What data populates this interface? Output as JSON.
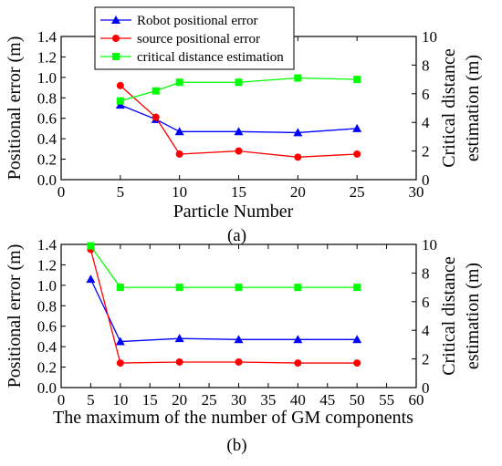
{
  "chart_data": [
    {
      "type": "line",
      "caption": "(a)",
      "xlabel": "Particle Number",
      "ylabel": "Positional error (m)",
      "y2label_lines": [
        "Critical distance",
        "estimation (m)"
      ],
      "xlim": [
        0,
        30
      ],
      "ylim": [
        0.0,
        1.4
      ],
      "y2lim": [
        0,
        10
      ],
      "xticks": [
        "0",
        "5",
        "10",
        "15",
        "20",
        "25",
        "30"
      ],
      "yticks": [
        "0.0",
        "0.2",
        "0.4",
        "0.6",
        "0.8",
        "1.0",
        "1.2",
        "1.4"
      ],
      "y2ticks": [
        "0",
        "2",
        "4",
        "6",
        "8",
        "10"
      ],
      "x": [
        5,
        8,
        10,
        15,
        20,
        25
      ],
      "legend": {
        "placement": "top-left"
      },
      "series": [
        {
          "name": "Robot positional error",
          "color": "#0000ff",
          "marker": "triangle",
          "axis": "left",
          "values": [
            0.73,
            0.59,
            0.47,
            0.47,
            0.46,
            0.5
          ]
        },
        {
          "name": "source positional error",
          "color": "#ff0000",
          "marker": "circle",
          "axis": "left",
          "values": [
            0.92,
            0.61,
            0.25,
            0.28,
            0.22,
            0.25
          ]
        },
        {
          "name": "critical distance estimation",
          "color": "#00ff00",
          "marker": "square",
          "axis": "right",
          "values": [
            5.5,
            6.2,
            6.8,
            6.8,
            7.1,
            7.0
          ]
        }
      ]
    },
    {
      "type": "line",
      "caption": "(b)",
      "xlabel": "The maximum of the number of GM components",
      "ylabel": "Positional error (m)",
      "y2label_lines": [
        "Critical distance",
        "estimation (m)"
      ],
      "xlim": [
        0,
        60
      ],
      "ylim": [
        0.0,
        1.4
      ],
      "y2lim": [
        0,
        10
      ],
      "xticks": [
        "0",
        "5",
        "10",
        "15",
        "20",
        "25",
        "30",
        "35",
        "40",
        "45",
        "50",
        "55",
        "60"
      ],
      "yticks": [
        "0.0",
        "0.2",
        "0.4",
        "0.6",
        "0.8",
        "1.0",
        "1.2",
        "1.4"
      ],
      "y2ticks": [
        "0",
        "2",
        "4",
        "6",
        "8",
        "10"
      ],
      "x": [
        5,
        10,
        20,
        30,
        40,
        50
      ],
      "series": [
        {
          "name": "Robot positional error",
          "color": "#0000ff",
          "marker": "triangle",
          "axis": "left",
          "values": [
            1.06,
            0.45,
            0.48,
            0.47,
            0.47,
            0.47
          ]
        },
        {
          "name": "source positional error",
          "color": "#ff0000",
          "marker": "circle",
          "axis": "left",
          "values": [
            1.35,
            0.24,
            0.25,
            0.25,
            0.24,
            0.24
          ]
        },
        {
          "name": "critical distance estimation",
          "color": "#00ff00",
          "marker": "square",
          "axis": "right",
          "values": [
            9.9,
            7.0,
            7.0,
            7.0,
            7.0,
            7.0
          ]
        }
      ]
    }
  ]
}
